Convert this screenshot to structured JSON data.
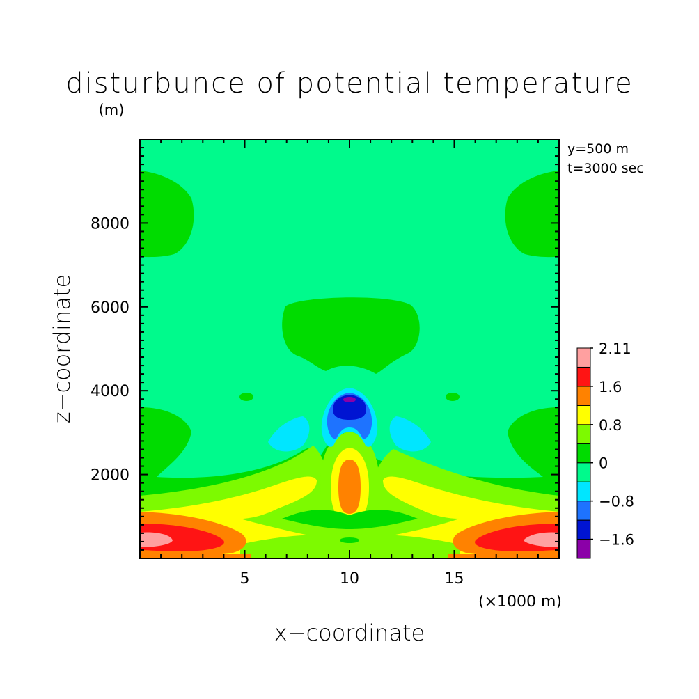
{
  "chart_data": {
    "type": "heatmap",
    "title": "disturbunce of potential temperature",
    "units": "(m)",
    "annotations": [
      "y=500 m",
      "t=3000 sec"
    ],
    "xlabel": "x−coordinate",
    "ylabel": "z−coordinate",
    "x_unit_label": "(×1000 m)",
    "xlim": [
      0,
      20
    ],
    "ylim": [
      0,
      10000
    ],
    "x_ticks": [
      5,
      10,
      15
    ],
    "x_tick_labels": [
      "5",
      "10",
      "15"
    ],
    "y_ticks": [
      2000,
      4000,
      6000,
      8000
    ],
    "y_tick_labels": [
      "2000",
      "4000",
      "6000",
      "8000"
    ],
    "colorbar": {
      "boundaries": [
        -2.0,
        -1.6,
        -1.2,
        -0.8,
        -0.4,
        0,
        0.4,
        0.8,
        1.2,
        1.6,
        2.0,
        2.11
      ],
      "colors": [
        "#8b00a8",
        "#0014d2",
        "#1e73ff",
        "#00e6ff",
        "#00fa8c",
        "#00dc00",
        "#7dfa00",
        "#ffff00",
        "#ff8200",
        "#ff1414",
        "#ffa0a0"
      ],
      "tick_labels": [
        "2.11",
        "1.6",
        "0.8",
        "0",
        "−0.8",
        "−1.6"
      ],
      "tick_values": [
        2.11,
        1.6,
        0.8,
        0,
        -0.8,
        -1.6
      ]
    },
    "background_value": -0.2,
    "features": [
      {
        "name": "left lower warm band",
        "level": 1.7,
        "x_range": [
          0,
          6
        ],
        "z_range": [
          0,
          1150
        ]
      },
      {
        "name": "right lower warm band",
        "level": 1.7,
        "x_range": [
          14,
          20
        ],
        "z_range": [
          0,
          1150
        ]
      },
      {
        "name": "central warm plume",
        "level": 1.4,
        "x_center": 10,
        "z_range": [
          800,
          2300
        ]
      },
      {
        "name": "central cold core",
        "level": -1.8,
        "x_center": 10,
        "z_center": 3800
      },
      {
        "name": "upper positive dome",
        "level": 0.1,
        "x_range": [
          6.7,
          13.2
        ],
        "z_range": [
          4450,
          6250
        ]
      },
      {
        "name": "upper left positive lobe",
        "level": 0.1,
        "x_range": [
          0,
          2.7
        ],
        "z_range": [
          7150,
          9250
        ]
      },
      {
        "name": "upper right positive lobe",
        "level": 0.1,
        "x_range": [
          17.3,
          20
        ],
        "z_range": [
          7150,
          9250
        ]
      }
    ]
  }
}
